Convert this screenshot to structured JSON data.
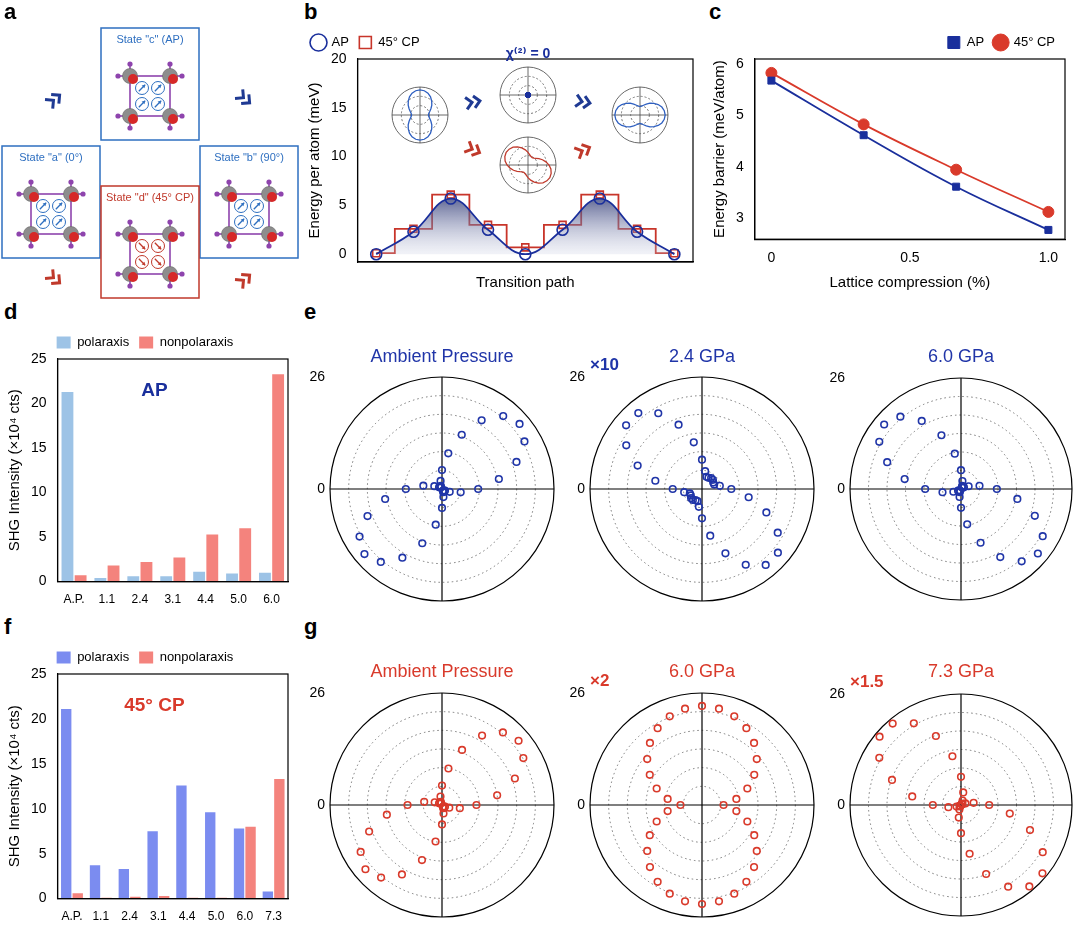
{
  "diagram": {
    "panel": "a",
    "states": [
      {
        "label": "State \"a\" (0°)",
        "color": "#2e6fc0"
      },
      {
        "label": "State \"c\" (AP)",
        "color": "#2e6fc0"
      },
      {
        "label": "State \"b\" (90°)",
        "color": "#2e6fc0"
      },
      {
        "label": "State \"d\" (45° CP)",
        "color": "#c0392b"
      }
    ]
  },
  "chart_data": [
    {
      "panel": "b",
      "type": "line",
      "x_label": "Transition path",
      "y_label": "Energy per atom (meV)",
      "categories": [
        null,
        null,
        null,
        null,
        null,
        null,
        null,
        null,
        null
      ],
      "ylim": [
        -0.8,
        20
      ],
      "yticks": [
        0,
        5,
        10,
        15,
        20
      ],
      "tick_labels": "y",
      "grid": false,
      "legend": "top-left",
      "series": [
        {
          "name": "AP",
          "color": "#1a2f9c",
          "values": [
            0,
            2.3,
            5.7,
            2.5,
            0,
            2.5,
            5.7,
            2.3,
            0
          ],
          "marker": "open_circle",
          "line_style": "solid"
        },
        {
          "name": "45° CP",
          "color": "#c8352a",
          "values": [
            0.1,
            2.6,
            6.1,
            3.0,
            0.7,
            3.0,
            6.1,
            2.6,
            0.1
          ],
          "marker": "open_square",
          "line_style": "stepped"
        }
      ],
      "insets": [
        {
          "type": "polar",
          "color": "#2e5fc0",
          "marker": "none",
          "line_style": "solid",
          "grid": true,
          "tick_labels": false,
          "xlim": [
            0,
            360
          ],
          "ylim": [
            0,
            1
          ],
          "yticks": [
            0,
            1
          ],
          "x": [
            0,
            10,
            20,
            30,
            40,
            50,
            60,
            70,
            80,
            90,
            100,
            110,
            120,
            130,
            140,
            150,
            160,
            170,
            180,
            190,
            200,
            210,
            220,
            230,
            240,
            250,
            260,
            270,
            280,
            290,
            300,
            310,
            320,
            330,
            340,
            350
          ],
          "values": [
            0.3,
            0.32,
            0.37,
            0.45,
            0.55,
            0.65,
            0.75,
            0.83,
            0.88,
            0.9,
            0.88,
            0.83,
            0.75,
            0.65,
            0.55,
            0.45,
            0.37,
            0.32,
            0.3,
            0.32,
            0.37,
            0.45,
            0.55,
            0.65,
            0.75,
            0.83,
            0.88,
            0.9,
            0.88,
            0.83,
            0.75,
            0.65,
            0.55,
            0.45,
            0.37,
            0.32
          ]
        },
        {
          "type": "polar",
          "color": "#1a2f9c",
          "marker": "dot",
          "line_style": "solid",
          "grid": true,
          "tick_labels": false,
          "annotation": "χ⁽²⁾ = 0",
          "xlim": [
            0,
            360
          ],
          "ylim": [
            0,
            1
          ],
          "yticks": [
            0,
            1
          ],
          "x": [
            0,
            10,
            20,
            30,
            40,
            50,
            60,
            70,
            80,
            90,
            100,
            110,
            120,
            130,
            140,
            150,
            160,
            170,
            180,
            190,
            200,
            210,
            220,
            230,
            240,
            250,
            260,
            270,
            280,
            290,
            300,
            310,
            320,
            330,
            340,
            350
          ],
          "values": [
            0,
            0,
            0,
            0,
            0,
            0,
            0,
            0,
            0,
            0,
            0,
            0,
            0,
            0,
            0,
            0,
            0,
            0,
            0,
            0,
            0,
            0,
            0,
            0,
            0,
            0,
            0,
            0,
            0,
            0,
            0,
            0,
            0,
            0,
            0,
            0
          ]
        },
        {
          "type": "polar",
          "color": "#c0392b",
          "marker": "none",
          "line_style": "solid",
          "grid": true,
          "tick_labels": false,
          "xlim": [
            0,
            360
          ],
          "ylim": [
            0,
            1
          ],
          "yticks": [
            0,
            1
          ],
          "x": [
            0,
            10,
            20,
            30,
            40,
            50,
            60,
            70,
            80,
            90,
            100,
            110,
            120,
            130,
            140,
            150,
            160,
            170,
            180,
            190,
            200,
            210,
            220,
            230,
            240,
            250,
            260,
            270,
            280,
            290,
            300,
            310,
            320,
            330,
            340,
            350
          ],
          "values": [
            0.75,
            0.65,
            0.55,
            0.45,
            0.37,
            0.32,
            0.3,
            0.32,
            0.37,
            0.45,
            0.55,
            0.65,
            0.75,
            0.83,
            0.88,
            0.9,
            0.88,
            0.83,
            0.75,
            0.65,
            0.55,
            0.45,
            0.37,
            0.32,
            0.3,
            0.32,
            0.37,
            0.45,
            0.55,
            0.65,
            0.75,
            0.83,
            0.88,
            0.9,
            0.88,
            0.83
          ]
        },
        {
          "type": "polar",
          "color": "#2e5fc0",
          "marker": "none",
          "line_style": "solid",
          "grid": true,
          "tick_labels": false,
          "xlim": [
            0,
            360
          ],
          "ylim": [
            0,
            1
          ],
          "yticks": [
            0,
            1
          ],
          "x": [
            0,
            10,
            20,
            30,
            40,
            50,
            60,
            70,
            80,
            90,
            100,
            110,
            120,
            130,
            140,
            150,
            160,
            170,
            180,
            190,
            200,
            210,
            220,
            230,
            240,
            250,
            260,
            270,
            280,
            290,
            300,
            310,
            320,
            330,
            340,
            350
          ],
          "values": [
            0.9,
            0.88,
            0.83,
            0.75,
            0.65,
            0.55,
            0.45,
            0.37,
            0.32,
            0.3,
            0.32,
            0.37,
            0.45,
            0.55,
            0.65,
            0.75,
            0.83,
            0.88,
            0.9,
            0.88,
            0.83,
            0.75,
            0.65,
            0.55,
            0.45,
            0.37,
            0.32,
            0.3,
            0.32,
            0.37,
            0.45,
            0.55,
            0.65,
            0.75,
            0.83,
            0.88
          ]
        }
      ]
    },
    {
      "panel": "c",
      "type": "line",
      "x_label": "Lattice compression (%)",
      "y_label": "Energy barrier (meV/atom)",
      "x": [
        0,
        0.333,
        0.667,
        1
      ],
      "xlim": [
        -0.06,
        1.06
      ],
      "xticks": [
        0,
        0.5,
        {
          "value": 1,
          "label": "1.0"
        }
      ],
      "ylim": [
        2.6,
        6.1
      ],
      "yticks": [
        3,
        4,
        5,
        6
      ],
      "grid": false,
      "legend": "top-right",
      "series": [
        {
          "name": "AP",
          "color": "#1a2f9c",
          "values": [
            5.68,
            4.62,
            3.62,
            2.78
          ],
          "marker": "square",
          "line_style": "solid"
        },
        {
          "name": "45° CP",
          "color": "#d93a2b",
          "values": [
            5.83,
            4.83,
            3.95,
            3.13
          ],
          "marker": "circle",
          "line_style": "solid"
        }
      ]
    },
    {
      "panel": "d",
      "type": "bar",
      "y_label": "SHG Intensity (×10⁴ cts)",
      "annotation": "AP",
      "color": "#1a2f9c",
      "categories": [
        "A.P.",
        "1.1",
        "2.4",
        "3.1",
        "4.4",
        "5.0",
        "6.0"
      ],
      "ylim": [
        0,
        25
      ],
      "yticks": [
        0,
        5,
        10,
        15,
        20,
        25
      ],
      "grid": false,
      "legend": "top",
      "series": [
        {
          "name": "polaraxis",
          "color": "#9dc3e6",
          "values": [
            21.3,
            0.4,
            0.6,
            0.6,
            1.1,
            0.9,
            1.0
          ]
        },
        {
          "name": "nonpolaraxis",
          "color": "#f4837d",
          "values": [
            0.7,
            1.8,
            2.2,
            2.7,
            5.3,
            6.0,
            23.3
          ]
        }
      ]
    },
    {
      "panel": "e",
      "type": "polar",
      "title": "Ambient Pressure",
      "color": "#2035a8",
      "marker": "open_circle",
      "line_style": "none",
      "grid": true,
      "xlim": [
        0,
        360
      ],
      "ylim": [
        0,
        26
      ],
      "yticks": [
        0,
        26
      ],
      "x": [
        0,
        10,
        20,
        30,
        40,
        50,
        60,
        70,
        80,
        90,
        100,
        110,
        120,
        130,
        140,
        150,
        160,
        170,
        180,
        190,
        200,
        210,
        220,
        230,
        240,
        250,
        260,
        270,
        280,
        290,
        300,
        310,
        320,
        330,
        340,
        350
      ],
      "values": [
        8.4,
        13.4,
        18.4,
        22.1,
        23.5,
        22.1,
        18.4,
        13.4,
        8.4,
        4.4,
        1.9,
        0.8,
        0.5,
        0.5,
        0.5,
        0.8,
        1.9,
        4.4,
        8.4,
        13.4,
        18.4,
        22.1,
        23.5,
        22.1,
        18.4,
        13.4,
        8.4,
        4.4,
        1.9,
        0.8,
        0.5,
        0.5,
        0.5,
        0.8,
        1.9,
        4.4
      ]
    },
    {
      "type": "polar",
      "title": "2.4 GPa",
      "annotation": "×10",
      "color": "#2035a8",
      "marker": "open_circle",
      "line_style": "none",
      "grid": true,
      "xlim": [
        0,
        360
      ],
      "ylim": [
        0,
        26
      ],
      "yticks": [
        0,
        26
      ],
      "x": [
        0,
        10,
        20,
        30,
        40,
        50,
        60,
        70,
        80,
        90,
        100,
        110,
        120,
        130,
        140,
        150,
        160,
        170,
        180,
        190,
        200,
        210,
        220,
        230,
        240,
        250,
        260,
        270,
        280,
        290,
        300,
        310,
        320,
        330,
        340,
        350
      ],
      "values": [
        6.8,
        4.2,
        3.0,
        3.0,
        3.3,
        3.3,
        3.0,
        3.0,
        4.2,
        6.8,
        11.0,
        15.9,
        20.3,
        23.0,
        23.0,
        20.3,
        15.9,
        11.0,
        6.8,
        4.2,
        3.0,
        3.0,
        3.3,
        3.3,
        3.0,
        3.0,
        4.2,
        6.8,
        11.0,
        15.9,
        20.3,
        23.0,
        23.0,
        20.3,
        15.9,
        11.0
      ]
    },
    {
      "type": "polar",
      "title": "6.0 GPa",
      "color": "#2035a8",
      "marker": "open_circle",
      "line_style": "none",
      "grid": true,
      "xlim": [
        0,
        360
      ],
      "ylim": [
        0,
        26
      ],
      "yticks": [
        0,
        26
      ],
      "x": [
        0,
        10,
        20,
        30,
        40,
        50,
        60,
        70,
        80,
        90,
        100,
        110,
        120,
        130,
        140,
        150,
        160,
        170,
        180,
        190,
        200,
        210,
        220,
        230,
        240,
        250,
        260,
        270,
        280,
        290,
        300,
        310,
        320,
        330,
        340,
        350
      ],
      "values": [
        8.4,
        4.4,
        1.9,
        0.8,
        0.5,
        0.5,
        0.5,
        0.8,
        1.9,
        4.4,
        8.4,
        13.4,
        18.4,
        22.1,
        23.5,
        22.1,
        18.4,
        13.4,
        8.4,
        4.4,
        1.9,
        0.8,
        0.5,
        0.5,
        0.5,
        0.8,
        1.9,
        4.4,
        8.4,
        13.4,
        18.4,
        22.1,
        23.5,
        22.1,
        18.4,
        13.4
      ]
    },
    {
      "panel": "f",
      "type": "bar",
      "y_label": "SHG Intensity (×10⁴ cts)",
      "annotation": "45° CP",
      "color": "#d93a2b",
      "categories": [
        "A.P.",
        "1.1",
        "2.4",
        "3.1",
        "4.4",
        "5.0",
        "6.0",
        "7.3"
      ],
      "ylim": [
        0,
        25
      ],
      "yticks": [
        0,
        5,
        10,
        15,
        20,
        25
      ],
      "grid": false,
      "legend": "top",
      "series": [
        {
          "name": "polaraxis",
          "color": "#7b8cf0",
          "values": [
            21.1,
            3.7,
            3.3,
            7.5,
            12.6,
            9.6,
            7.8,
            0.8
          ]
        },
        {
          "name": "nonpolaraxis",
          "color": "#f4837d",
          "values": [
            0.6,
            0.1,
            0.2,
            0.3,
            0.1,
            0.1,
            8.0,
            13.3
          ]
        }
      ]
    },
    {
      "panel": "g",
      "type": "polar",
      "title": "Ambient Pressure",
      "color": "#d93a2b",
      "marker": "open_circle",
      "line_style": "none",
      "grid": true,
      "xlim": [
        0,
        360
      ],
      "ylim": [
        0,
        26
      ],
      "yticks": [
        0,
        26
      ],
      "x": [
        0,
        10,
        20,
        30,
        40,
        50,
        60,
        70,
        80,
        90,
        100,
        110,
        120,
        130,
        140,
        150,
        160,
        170,
        180,
        190,
        200,
        210,
        220,
        230,
        240,
        250,
        260,
        270,
        280,
        290,
        300,
        310,
        320,
        330,
        340,
        350
      ],
      "values": [
        8.0,
        13.0,
        18.0,
        21.8,
        23.2,
        22.0,
        18.6,
        13.6,
        8.6,
        4.5,
        2.0,
        0.8,
        0.5,
        0.5,
        0.5,
        0.8,
        1.8,
        4.2,
        8.0,
        13.0,
        18.0,
        21.8,
        23.2,
        22.0,
        18.6,
        13.6,
        8.6,
        4.5,
        2.0,
        0.8,
        0.5,
        0.5,
        0.5,
        0.8,
        1.8,
        4.2
      ]
    },
    {
      "type": "polar",
      "title": "6.0 GPa",
      "annotation": "×2",
      "color": "#d93a2b",
      "marker": "open_circle",
      "line_style": "none",
      "grid": true,
      "xlim": [
        0,
        360
      ],
      "ylim": [
        0,
        26
      ],
      "yticks": [
        0,
        26
      ],
      "x": [
        0,
        10,
        20,
        30,
        40,
        50,
        60,
        70,
        80,
        90,
        100,
        110,
        120,
        130,
        140,
        150,
        160,
        170,
        180,
        190,
        200,
        210,
        220,
        230,
        240,
        250,
        260,
        270,
        280,
        290,
        300,
        310,
        320,
        330,
        340,
        350
      ],
      "values": [
        5.0,
        8.1,
        11.2,
        14.0,
        16.6,
        18.8,
        20.6,
        21.9,
        22.7,
        23.0,
        22.7,
        21.9,
        20.6,
        18.8,
        16.6,
        14.0,
        11.2,
        8.1,
        5.0,
        8.1,
        11.2,
        14.0,
        16.6,
        18.8,
        20.6,
        21.9,
        22.7,
        23.0,
        22.7,
        21.9,
        20.6,
        18.8,
        16.6,
        14.0,
        11.2,
        8.1
      ]
    },
    {
      "type": "polar",
      "title": "7.3 GPa",
      "annotation": "×1.5",
      "color": "#d93a2b",
      "marker": "open_circle",
      "line_style": "none",
      "grid": true,
      "xlim": [
        0,
        360
      ],
      "ylim": [
        0,
        26
      ],
      "yticks": [
        0,
        26
      ],
      "x": [
        0,
        10,
        20,
        30,
        40,
        50,
        60,
        70,
        80,
        90,
        100,
        110,
        120,
        130,
        140,
        150,
        160,
        170,
        180,
        190,
        200,
        210,
        220,
        230,
        240,
        250,
        260,
        270,
        280,
        290,
        300,
        310,
        320,
        330,
        340,
        350
      ],
      "values": [
        6.6,
        3.0,
        1.1,
        0.4,
        0.3,
        0.3,
        0.4,
        1.1,
        3.0,
        6.6,
        11.6,
        17.2,
        22.1,
        24.9,
        24.9,
        22.1,
        17.2,
        11.6,
        6.6,
        3.0,
        1.1,
        0.4,
        0.3,
        0.3,
        0.4,
        1.1,
        3.0,
        6.6,
        11.6,
        17.2,
        22.1,
        24.9,
        24.9,
        22.1,
        17.2,
        11.6
      ]
    }
  ]
}
